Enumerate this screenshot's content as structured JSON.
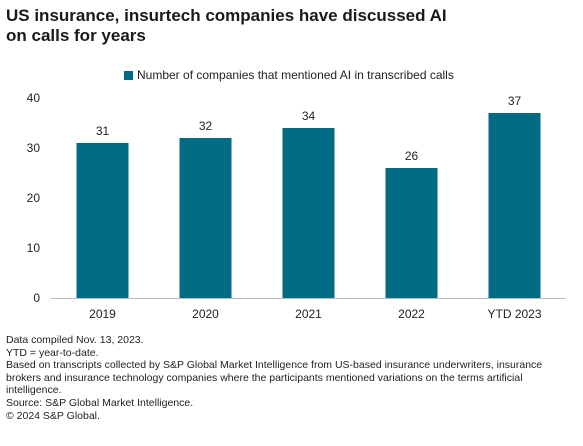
{
  "title_lines": [
    "US insurance, insurtech companies have discussed AI",
    "on calls for years"
  ],
  "accent_color": "#006b82",
  "chart_data": {
    "type": "bar",
    "categories": [
      "2019",
      "2020",
      "2021",
      "2022",
      "YTD 2023"
    ],
    "series": [
      {
        "name": "Number of companies that mentioned AI in transcribed calls",
        "values": [
          31,
          32,
          34,
          26,
          37
        ]
      }
    ],
    "data_labels": [
      "31",
      "32",
      "34",
      "26",
      "37"
    ],
    "yticks": [
      "0",
      "10",
      "20",
      "30",
      "40"
    ],
    "ylim": [
      0,
      40
    ],
    "grid": false,
    "legend_position": "top"
  },
  "notes": [
    "Data compiled Nov. 13, 2023.",
    "YTD = year-to-date.",
    "Based on transcripts collected by S&P Global Market Intelligence from US-based insurance underwriters, insurance brokers and insurance technology companies where the participants mentioned variations on the terms artificial intelligence.",
    "Source: S&P Global Market Intelligence.",
    "© 2024 S&P Global."
  ]
}
